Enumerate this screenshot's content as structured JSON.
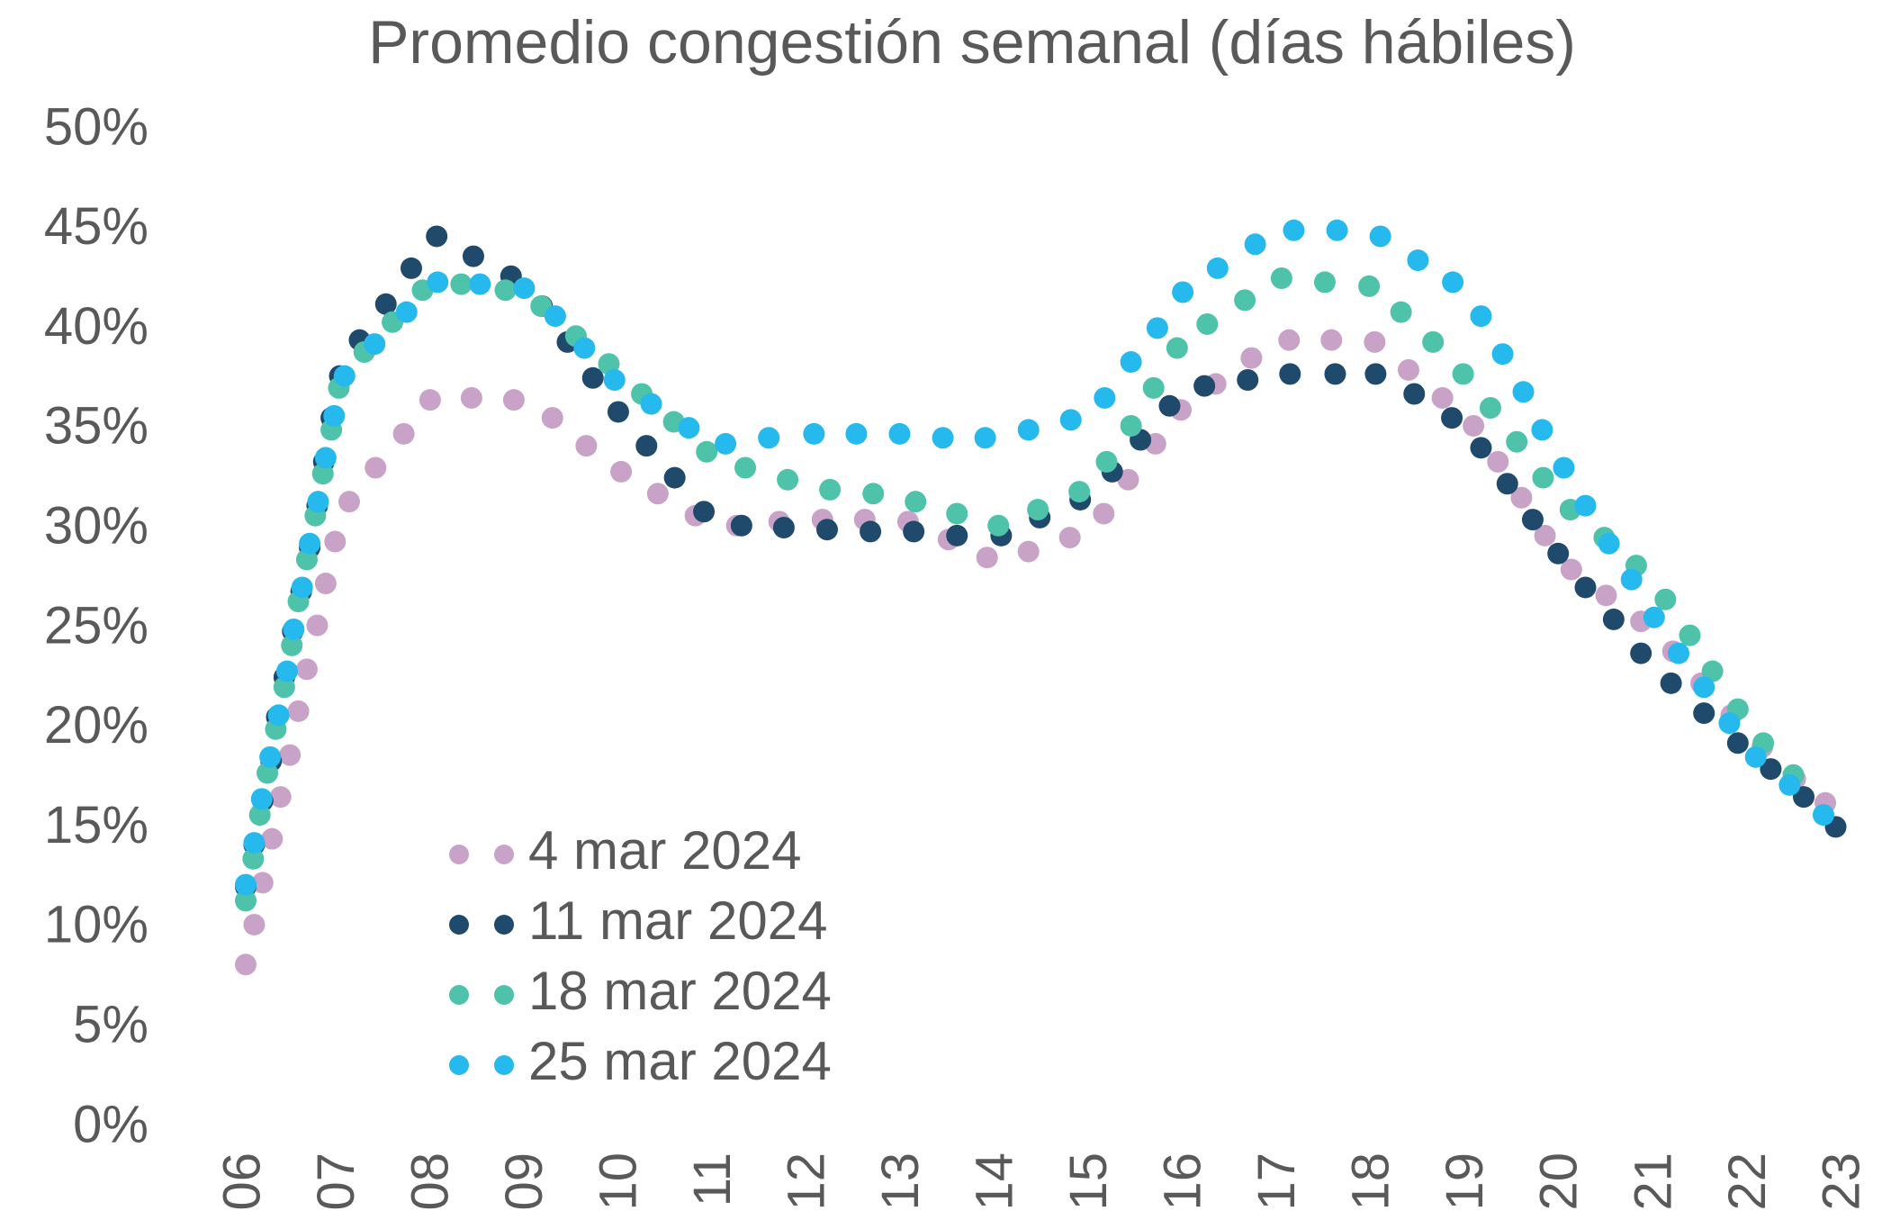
{
  "chart_data": {
    "type": "scatter",
    "title": "Promedio congestión semanal (días hábiles)",
    "xlim": [
      6,
      23
    ],
    "ylim": [
      0,
      50
    ],
    "legend": "lower left",
    "xticks": [
      {
        "value": 6,
        "label": "06"
      },
      {
        "value": 7,
        "label": "07"
      },
      {
        "value": 8,
        "label": "08"
      },
      {
        "value": 9,
        "label": "09"
      },
      {
        "value": 10,
        "label": "10"
      },
      {
        "value": 11,
        "label": "11"
      },
      {
        "value": 12,
        "label": "12"
      },
      {
        "value": 13,
        "label": "13"
      },
      {
        "value": 14,
        "label": "14"
      },
      {
        "value": 15,
        "label": "15"
      },
      {
        "value": 16,
        "label": "16"
      },
      {
        "value": 17,
        "label": "17"
      },
      {
        "value": 18,
        "label": "18"
      },
      {
        "value": 19,
        "label": "19"
      },
      {
        "value": 20,
        "label": "20"
      },
      {
        "value": 21,
        "label": "21"
      },
      {
        "value": 22,
        "label": "22"
      },
      {
        "value": 23,
        "label": "23"
      }
    ],
    "yticks": [
      {
        "value": 0,
        "label": "0%"
      },
      {
        "value": 5,
        "label": "5%"
      },
      {
        "value": 10,
        "label": "10%"
      },
      {
        "value": 15,
        "label": "15%"
      },
      {
        "value": 20,
        "label": "20%"
      },
      {
        "value": 25,
        "label": "25%"
      },
      {
        "value": 30,
        "label": "30%"
      },
      {
        "value": 35,
        "label": "35%"
      },
      {
        "value": 40,
        "label": "40%"
      },
      {
        "value": 45,
        "label": "45%"
      },
      {
        "value": 50,
        "label": "50%"
      }
    ],
    "series": [
      {
        "name": "4 mar 2024",
        "color": "#c9a3c7",
        "x": [
          6.0,
          6.09,
          6.18,
          6.28,
          6.37,
          6.47,
          6.56,
          6.65,
          6.76,
          6.85,
          6.95,
          7.1,
          7.38,
          7.68,
          7.96,
          8.4,
          8.85,
          9.26,
          9.62,
          9.99,
          10.38,
          10.78,
          11.22,
          11.67,
          12.13,
          12.58,
          13.04,
          13.47,
          13.88,
          14.32,
          14.76,
          15.12,
          15.38,
          15.67,
          15.94,
          16.31,
          16.69,
          17.09,
          17.54,
          18.0,
          18.36,
          18.72,
          19.05,
          19.31,
          19.56,
          19.81,
          20.09,
          20.46,
          20.83,
          21.17,
          21.47,
          21.79,
          22.12,
          22.47,
          22.79
        ],
        "values": [
          8.2,
          10.2,
          12.3,
          14.5,
          16.6,
          18.7,
          20.9,
          23.0,
          25.2,
          27.3,
          29.4,
          31.4,
          33.1,
          34.8,
          36.5,
          36.6,
          36.5,
          35.6,
          34.2,
          32.9,
          31.8,
          30.7,
          30.2,
          30.4,
          30.5,
          30.5,
          30.4,
          29.5,
          28.6,
          28.9,
          29.6,
          30.8,
          32.5,
          34.3,
          36.0,
          37.3,
          38.6,
          39.5,
          39.5,
          39.4,
          38.0,
          36.6,
          35.2,
          33.4,
          31.6,
          29.7,
          28.0,
          26.7,
          25.4,
          23.9,
          22.3,
          20.7,
          19.1,
          17.5,
          16.3
        ]
      },
      {
        "name": "11 mar 2024",
        "color": "#1f4a6b",
        "x": [
          6.0,
          6.09,
          6.18,
          6.27,
          6.33,
          6.41,
          6.5,
          6.59,
          6.68,
          6.76,
          6.83,
          6.91,
          7.0,
          7.21,
          7.49,
          7.76,
          8.03,
          8.42,
          8.82,
          9.15,
          9.42,
          9.69,
          9.96,
          10.26,
          10.56,
          10.87,
          11.27,
          11.72,
          12.18,
          12.64,
          13.1,
          13.56,
          14.03,
          14.44,
          14.87,
          15.21,
          15.51,
          15.82,
          16.19,
          16.65,
          17.1,
          17.58,
          18.01,
          18.42,
          18.82,
          19.13,
          19.41,
          19.68,
          19.95,
          20.24,
          20.54,
          20.83,
          21.15,
          21.5,
          21.86,
          22.21,
          22.56,
          22.9
        ],
        "values": [
          12.1,
          14.2,
          16.4,
          18.4,
          20.6,
          22.6,
          24.9,
          26.9,
          29.1,
          31.2,
          33.4,
          35.6,
          37.7,
          39.5,
          41.3,
          43.1,
          44.7,
          43.7,
          42.7,
          41.2,
          39.4,
          37.6,
          35.9,
          34.2,
          32.6,
          30.9,
          30.2,
          30.1,
          30.0,
          29.9,
          29.9,
          29.7,
          29.7,
          30.6,
          31.5,
          32.9,
          34.5,
          36.2,
          37.2,
          37.5,
          37.8,
          37.8,
          37.8,
          36.8,
          35.6,
          34.1,
          32.3,
          30.5,
          28.8,
          27.1,
          25.5,
          23.8,
          22.3,
          20.8,
          19.3,
          18.0,
          16.6,
          15.1
        ]
      },
      {
        "name": "18 mar 2024",
        "color": "#4fc3aa",
        "x": [
          6.0,
          6.08,
          6.15,
          6.23,
          6.32,
          6.41,
          6.49,
          6.56,
          6.65,
          6.74,
          6.82,
          6.91,
          6.99,
          7.26,
          7.56,
          7.88,
          8.29,
          8.76,
          9.14,
          9.51,
          9.86,
          10.21,
          10.55,
          10.9,
          11.31,
          11.76,
          12.21,
          12.67,
          13.12,
          13.56,
          14.0,
          14.42,
          14.86,
          15.15,
          15.41,
          15.65,
          15.9,
          16.22,
          16.62,
          17.01,
          17.47,
          17.94,
          18.28,
          18.62,
          18.94,
          19.23,
          19.51,
          19.79,
          20.08,
          20.44,
          20.78,
          21.09,
          21.35,
          21.59,
          21.86,
          22.13,
          22.45
        ],
        "values": [
          11.4,
          13.5,
          15.7,
          17.8,
          20.0,
          22.1,
          24.2,
          26.4,
          28.5,
          30.7,
          32.8,
          35.0,
          37.1,
          38.9,
          40.4,
          42.0,
          42.3,
          42.0,
          41.2,
          39.7,
          38.3,
          36.8,
          35.4,
          33.9,
          33.1,
          32.5,
          32.0,
          31.8,
          31.4,
          30.8,
          30.2,
          31.0,
          31.9,
          33.4,
          35.2,
          37.1,
          39.1,
          40.3,
          41.5,
          42.6,
          42.4,
          42.2,
          40.9,
          39.4,
          37.8,
          36.1,
          34.4,
          32.6,
          31.0,
          29.6,
          28.2,
          26.5,
          24.7,
          22.9,
          21.0,
          19.3,
          17.7
        ]
      },
      {
        "name": "25 mar 2024",
        "color": "#25b9ee",
        "x": [
          6.0,
          6.09,
          6.17,
          6.26,
          6.35,
          6.44,
          6.51,
          6.6,
          6.68,
          6.77,
          6.85,
          6.94,
          7.05,
          7.37,
          7.71,
          8.04,
          8.49,
          8.96,
          9.29,
          9.6,
          9.92,
          10.31,
          10.71,
          11.1,
          11.56,
          12.04,
          12.49,
          12.95,
          13.41,
          13.86,
          14.32,
          14.77,
          15.13,
          15.41,
          15.69,
          15.96,
          16.33,
          16.73,
          17.14,
          17.6,
          18.06,
          18.46,
          18.83,
          19.13,
          19.36,
          19.58,
          19.78,
          20.01,
          20.24,
          20.49,
          20.73,
          20.97,
          21.23,
          21.5,
          21.77,
          22.05,
          22.41,
          22.77
        ],
        "values": [
          12.2,
          14.3,
          16.5,
          18.6,
          20.7,
          22.9,
          25.0,
          27.1,
          29.3,
          31.4,
          33.6,
          35.7,
          37.7,
          39.3,
          40.9,
          42.4,
          42.3,
          42.1,
          40.7,
          39.1,
          37.5,
          36.3,
          35.1,
          34.3,
          34.6,
          34.8,
          34.8,
          34.8,
          34.6,
          34.6,
          35.0,
          35.5,
          36.6,
          38.4,
          40.1,
          41.9,
          43.1,
          44.3,
          45.0,
          45.0,
          44.7,
          43.5,
          42.4,
          40.7,
          38.8,
          36.9,
          35.0,
          33.1,
          31.2,
          29.3,
          27.5,
          25.6,
          23.8,
          22.1,
          20.3,
          18.6,
          17.2,
          15.7
        ]
      }
    ]
  }
}
